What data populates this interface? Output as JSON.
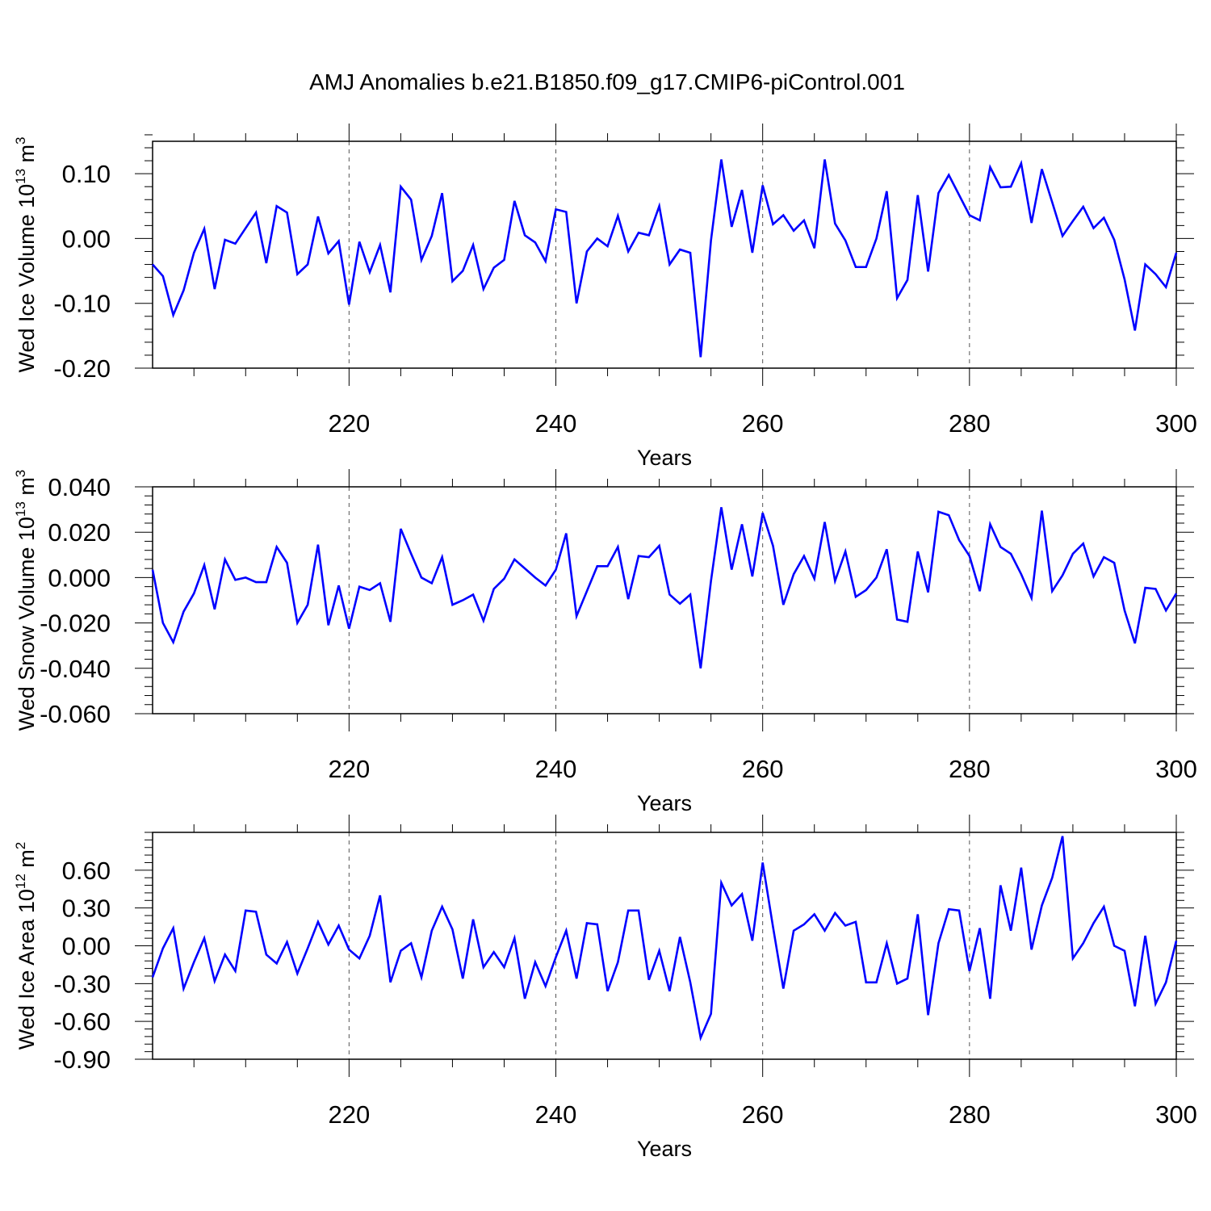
{
  "title": "AMJ Anomalies b.e21.B1850.f09_g17.CMIP6-piControl.001",
  "line_color": "#0000ff",
  "chart_data": [
    {
      "type": "line",
      "ylabel": {
        "main": "Wed Ice Volume 10",
        "exp": "13",
        "unit": " m",
        "unit_exp": "3"
      },
      "xlabel": "Years",
      "xlim": [
        201,
        300
      ],
      "ylim": [
        -0.2,
        0.15
      ],
      "yticks": [
        -0.2,
        -0.1,
        0.0,
        0.1
      ],
      "ytick_labels": [
        "-0.20",
        "-0.10",
        "0.00",
        "0.10"
      ],
      "xticks": [
        220,
        240,
        260,
        280,
        300
      ],
      "xtick_labels": [
        "220",
        "240",
        "260",
        "280",
        "300"
      ],
      "series": [
        {
          "name": "Wed Ice Volume",
          "x_start": 201,
          "values": [
            -0.04,
            -0.058,
            -0.118,
            -0.08,
            -0.022,
            0.015,
            -0.078,
            -0.002,
            -0.008,
            0.016,
            0.04,
            -0.038,
            0.05,
            0.04,
            -0.055,
            -0.04,
            0.034,
            -0.023,
            -0.004,
            -0.102,
            -0.005,
            -0.052,
            -0.01,
            -0.083,
            0.08,
            0.06,
            -0.033,
            0.004,
            0.07,
            -0.066,
            -0.05,
            -0.01,
            -0.078,
            -0.045,
            -0.033,
            0.058,
            0.005,
            -0.006,
            -0.035,
            0.045,
            0.041,
            -0.1,
            -0.02,
            0.0,
            -0.012,
            0.035,
            -0.02,
            0.009,
            0.005,
            0.05,
            -0.04,
            -0.017,
            -0.022,
            -0.183,
            -0.003,
            0.122,
            0.018,
            0.075,
            -0.022,
            0.082,
            0.022,
            0.036,
            0.012,
            0.028,
            -0.015,
            0.122,
            0.023,
            -0.003,
            -0.044,
            -0.044,
            0.0,
            0.073,
            -0.092,
            -0.064,
            0.067,
            -0.051,
            0.07,
            0.098,
            0.067,
            0.036,
            0.028,
            0.11,
            0.079,
            0.08,
            0.116,
            0.024,
            0.107,
            0.056,
            0.004,
            0.027,
            0.049,
            0.016,
            0.032,
            -0.002,
            -0.063,
            -0.142,
            -0.04,
            -0.055,
            -0.075,
            -0.022
          ]
        }
      ]
    },
    {
      "type": "line",
      "ylabel": {
        "main": "Wed Snow Volume 10",
        "exp": "13",
        "unit": " m",
        "unit_exp": "3"
      },
      "xlabel": "Years",
      "xlim": [
        201,
        300
      ],
      "ylim": [
        -0.06,
        0.04
      ],
      "yticks": [
        -0.06,
        -0.04,
        -0.02,
        0.0,
        0.02,
        0.04
      ],
      "ytick_labels": [
        "-0.060",
        "-0.040",
        "-0.020",
        "0.000",
        "0.020",
        "0.040"
      ],
      "xticks": [
        220,
        240,
        260,
        280,
        300
      ],
      "xtick_labels": [
        "220",
        "240",
        "260",
        "280",
        "300"
      ],
      "series": [
        {
          "name": "Wed Snow Volume",
          "x_start": 201,
          "values": [
            0.0035,
            -0.02,
            -0.0285,
            -0.015,
            -0.007,
            0.0055,
            -0.014,
            0.008,
            -0.001,
            0.0,
            -0.002,
            -0.002,
            0.0135,
            0.0065,
            -0.02,
            -0.012,
            0.0145,
            -0.021,
            -0.0035,
            -0.0225,
            -0.004,
            -0.0055,
            -0.0025,
            -0.0195,
            0.0215,
            0.0105,
            0.0,
            -0.0025,
            0.009,
            -0.012,
            -0.01,
            -0.0075,
            -0.019,
            -0.005,
            -0.0005,
            0.008,
            0.004,
            0.0,
            -0.0035,
            0.0035,
            0.0195,
            -0.017,
            -0.006,
            0.005,
            0.005,
            0.0135,
            -0.0095,
            0.0095,
            0.009,
            0.014,
            -0.0075,
            -0.0115,
            -0.0075,
            -0.04,
            -0.0015,
            0.031,
            0.0035,
            0.0235,
            0.0005,
            0.0285,
            0.014,
            -0.012,
            0.0015,
            0.0095,
            -0.0005,
            0.0245,
            -0.0015,
            0.0115,
            -0.0085,
            -0.0055,
            0.0,
            0.0125,
            -0.0185,
            -0.0195,
            0.0115,
            -0.0065,
            0.029,
            0.0275,
            0.0165,
            0.0095,
            -0.006,
            0.0235,
            0.0135,
            0.0105,
            0.0015,
            -0.009,
            0.0295,
            -0.006,
            0.001,
            0.0105,
            0.015,
            0.0005,
            0.009,
            0.0065,
            -0.0145,
            -0.029,
            -0.0045,
            -0.005,
            -0.0145,
            -0.007
          ]
        }
      ]
    },
    {
      "type": "line",
      "ylabel": {
        "main": "Wed Ice Area 10",
        "exp": "12",
        "unit": " m",
        "unit_exp": "2"
      },
      "xlabel": "Years",
      "xlim": [
        201,
        300
      ],
      "ylim": [
        -0.9,
        0.9
      ],
      "yticks": [
        -0.9,
        -0.6,
        -0.3,
        0.0,
        0.3,
        0.6
      ],
      "ytick_labels": [
        "-0.90",
        "-0.60",
        "-0.30",
        "0.00",
        "0.30",
        "0.60"
      ],
      "xticks": [
        220,
        240,
        260,
        280,
        300
      ],
      "xtick_labels": [
        "220",
        "240",
        "260",
        "280",
        "300"
      ],
      "series": [
        {
          "name": "Wed Ice Area",
          "x_start": 201,
          "values": [
            -0.25,
            -0.02,
            0.14,
            -0.34,
            -0.13,
            0.06,
            -0.28,
            -0.07,
            -0.2,
            0.28,
            0.27,
            -0.07,
            -0.14,
            0.03,
            -0.22,
            -0.02,
            0.19,
            0.01,
            0.16,
            -0.03,
            -0.1,
            0.08,
            0.4,
            -0.29,
            -0.04,
            0.02,
            -0.25,
            0.12,
            0.31,
            0.13,
            -0.26,
            0.21,
            -0.17,
            -0.05,
            -0.17,
            0.06,
            -0.42,
            -0.13,
            -0.32,
            -0.09,
            0.12,
            -0.26,
            0.18,
            0.17,
            -0.36,
            -0.13,
            0.28,
            0.28,
            -0.27,
            -0.04,
            -0.36,
            0.07,
            -0.29,
            -0.73,
            -0.54,
            0.5,
            0.32,
            0.41,
            0.04,
            0.66,
            0.15,
            -0.34,
            0.12,
            0.17,
            0.25,
            0.12,
            0.26,
            0.16,
            0.19,
            -0.29,
            -0.29,
            0.02,
            -0.3,
            -0.26,
            0.25,
            -0.55,
            0.02,
            0.29,
            0.28,
            -0.2,
            0.14,
            -0.42,
            0.48,
            0.12,
            0.62,
            -0.03,
            0.32,
            0.54,
            0.87,
            -0.1,
            0.02,
            0.18,
            0.31,
            0.0,
            -0.04,
            -0.48,
            0.08,
            -0.46,
            -0.29,
            0.04
          ]
        }
      ]
    }
  ]
}
